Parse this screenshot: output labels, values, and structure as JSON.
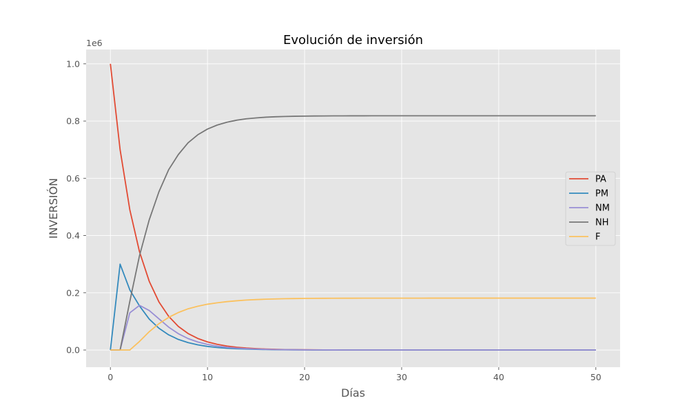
{
  "chart_data": {
    "type": "line",
    "title": "Evolución de inversión",
    "xlabel": "Días",
    "ylabel": "INVERSIÓN",
    "y_offset_text": "1e6",
    "xlim": [
      -2.5,
      52.5
    ],
    "ylim": [
      -60000,
      1050000
    ],
    "x_ticks": [
      0,
      10,
      20,
      30,
      40,
      50
    ],
    "x_tick_labels": [
      "0",
      "10",
      "20",
      "30",
      "40",
      "50"
    ],
    "y_ticks": [
      0,
      200000,
      400000,
      600000,
      800000,
      1000000
    ],
    "y_tick_labels": [
      "0.0",
      "0.2",
      "0.4",
      "0.6",
      "0.8",
      "1.0"
    ],
    "grid": true,
    "style": "ggplot",
    "legend_position": "center-right",
    "x": [
      0,
      1,
      2,
      3,
      4,
      5,
      6,
      7,
      8,
      9,
      10,
      11,
      12,
      13,
      14,
      15,
      16,
      17,
      18,
      19,
      20,
      21,
      22,
      23,
      24,
      25,
      26,
      27,
      28,
      29,
      30,
      31,
      32,
      33,
      34,
      35,
      36,
      37,
      38,
      39,
      40,
      41,
      42,
      43,
      44,
      45,
      46,
      47,
      48,
      49,
      50
    ],
    "series": [
      {
        "name": "PA",
        "color": "#E24A33",
        "values": [
          1000000,
          700000,
          490000,
          343000,
          240100,
          168070,
          117649,
          82354,
          57648,
          40354,
          28248,
          19773,
          13841,
          9689,
          6782,
          4748,
          3323,
          2326,
          1628,
          1140,
          798,
          558,
          391,
          274,
          192,
          134,
          94,
          66,
          46,
          32,
          22,
          16,
          11,
          8,
          5,
          4,
          3,
          2,
          1,
          1,
          1,
          0,
          0,
          0,
          0,
          0,
          0,
          0,
          0,
          0,
          0
        ]
      },
      {
        "name": "PM",
        "color": "#348ABD",
        "values": [
          0,
          300000,
          210000,
          154000,
          108000,
          76000,
          53000,
          37000,
          26000,
          18000,
          12500,
          8800,
          6200,
          4300,
          3000,
          2100,
          1500,
          1000,
          700,
          500,
          350,
          240,
          170,
          120,
          80,
          60,
          40,
          30,
          20,
          14,
          10,
          7,
          5,
          3,
          2,
          2,
          1,
          1,
          1,
          0,
          0,
          0,
          0,
          0,
          0,
          0,
          0,
          0,
          0,
          0,
          0
        ]
      },
      {
        "name": "NM",
        "color": "#988ED5",
        "values": [
          0,
          0,
          130000,
          156000,
          138000,
          109000,
          80000,
          57000,
          40000,
          28000,
          19500,
          13600,
          9500,
          6700,
          4700,
          3300,
          2300,
          1600,
          1100,
          800,
          560,
          390,
          270,
          190,
          130,
          90,
          65,
          45,
          30,
          22,
          15,
          10,
          7,
          5,
          4,
          3,
          2,
          1,
          1,
          1,
          0,
          0,
          0,
          0,
          0,
          0,
          0,
          0,
          0,
          0,
          0
        ]
      },
      {
        "name": "NH",
        "color": "#777777",
        "values": [
          0,
          0,
          170000,
          330000,
          455000,
          553000,
          630000,
          683000,
          724000,
          752000,
          772000,
          786000,
          796000,
          803000,
          808000,
          811000,
          813500,
          815000,
          816000,
          816800,
          817300,
          817700,
          817900,
          818100,
          818200,
          818300,
          818350,
          818400,
          818420,
          818440,
          818450,
          818460,
          818470,
          818480,
          818490,
          818500,
          818500,
          818500,
          818500,
          818500,
          818500,
          818500,
          818500,
          818500,
          818500,
          818500,
          818500,
          818500,
          818500,
          818500,
          818500
        ]
      },
      {
        "name": "F",
        "color": "#FBC15E",
        "values": [
          0,
          0,
          0,
          30000,
          64000,
          92000,
          114000,
          131000,
          144000,
          153000,
          160000,
          165000,
          169000,
          172000,
          174500,
          176200,
          177500,
          178500,
          179300,
          179800,
          180200,
          180500,
          180700,
          180850,
          180950,
          181050,
          181100,
          181150,
          181180,
          181200,
          181220,
          181240,
          181250,
          181260,
          181270,
          181280,
          181290,
          181300,
          181300,
          181300,
          181300,
          181300,
          181300,
          181300,
          181300,
          181300,
          181300,
          181300,
          181300,
          181300,
          181300
        ]
      }
    ]
  },
  "colors": {
    "plot_background": "#E5E5E5",
    "grid": "#FFFFFF",
    "legend_background": "#E5E5E5"
  }
}
